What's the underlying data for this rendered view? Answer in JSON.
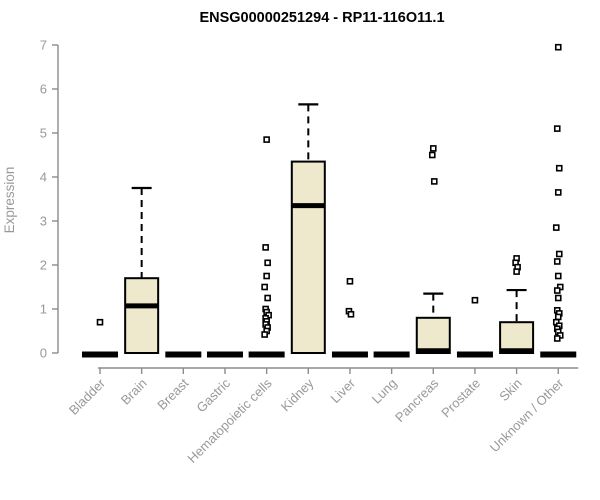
{
  "chart_data": {
    "type": "boxplot",
    "title": "ENSG00000251294 - RP11-116O11.1",
    "ylabel": "Expression",
    "xlabel": "",
    "ylim": [
      0,
      7
    ],
    "yticks": [
      0,
      1,
      2,
      3,
      4,
      5,
      6,
      7
    ],
    "grid": false,
    "legend": "none",
    "categories": [
      "Bladder",
      "Brain",
      "Breast",
      "Gastric",
      "Hematopoietic cells",
      "Kidney",
      "Liver",
      "Lung",
      "Pancreas",
      "Prostate",
      "Skin",
      "Unknown / Other"
    ],
    "boxes": [
      {
        "category": "Bladder",
        "q1": 0,
        "median": 0,
        "q3": 0,
        "whisker_low": 0,
        "whisker_high": 0,
        "outliers": [
          0.7
        ]
      },
      {
        "category": "Brain",
        "q1": 0,
        "median": 1.07,
        "q3": 1.7,
        "whisker_low": 0,
        "whisker_high": 3.75,
        "outliers": []
      },
      {
        "category": "Breast",
        "q1": 0,
        "median": 0,
        "q3": 0,
        "whisker_low": 0,
        "whisker_high": 0,
        "outliers": []
      },
      {
        "category": "Gastric",
        "q1": 0,
        "median": 0,
        "q3": 0,
        "whisker_low": 0,
        "whisker_high": 0,
        "outliers": []
      },
      {
        "category": "Hematopoietic cells",
        "q1": 0,
        "median": 0,
        "q3": 0,
        "whisker_low": 0,
        "whisker_high": 0,
        "outliers": [
          4.85,
          2.4,
          2.05,
          1.75,
          1.5,
          1.25,
          1.0,
          0.93,
          0.86,
          0.79,
          0.72,
          0.65,
          0.58,
          0.5,
          0.42
        ]
      },
      {
        "category": "Kidney",
        "q1": 0,
        "median": 3.35,
        "q3": 4.35,
        "whisker_low": 0,
        "whisker_high": 5.65,
        "outliers": []
      },
      {
        "category": "Liver",
        "q1": 0,
        "median": 0,
        "q3": 0,
        "whisker_low": 0,
        "whisker_high": 0,
        "outliers": [
          1.63,
          0.95,
          0.88
        ]
      },
      {
        "category": "Lung",
        "q1": 0,
        "median": 0,
        "q3": 0,
        "whisker_low": 0,
        "whisker_high": 0,
        "outliers": []
      },
      {
        "category": "Pancreas",
        "q1": 0,
        "median": 0.05,
        "q3": 0.8,
        "whisker_low": 0,
        "whisker_high": 1.35,
        "outliers": [
          4.65,
          4.5,
          3.9
        ]
      },
      {
        "category": "Prostate",
        "q1": 0,
        "median": 0,
        "q3": 0,
        "whisker_low": 0,
        "whisker_high": 0,
        "outliers": [
          1.2
        ]
      },
      {
        "category": "Skin",
        "q1": 0,
        "median": 0.05,
        "q3": 0.7,
        "whisker_low": 0,
        "whisker_high": 1.43,
        "outliers": [
          2.15,
          2.05,
          1.95,
          1.85
        ]
      },
      {
        "category": "Unknown / Other",
        "q1": 0,
        "median": 0,
        "q3": 0,
        "whisker_low": 0,
        "whisker_high": 0,
        "outliers": [
          6.95,
          5.1,
          4.2,
          3.65,
          2.85,
          2.25,
          2.08,
          1.75,
          1.5,
          1.42,
          1.25,
          0.97,
          0.9,
          0.82,
          0.7,
          0.62,
          0.55,
          0.48,
          0.4,
          0.33
        ]
      }
    ],
    "colors": {
      "box_fill": "#EEE8CD",
      "box_stroke": "#000000",
      "median": "#000000",
      "whisker": "#000000",
      "outlier_stroke": "#000000",
      "outlier_fill": "#ffffff",
      "axis": "#8C8C8C",
      "tick_label": "#999999",
      "title": "#000000",
      "background": "#ffffff"
    }
  }
}
